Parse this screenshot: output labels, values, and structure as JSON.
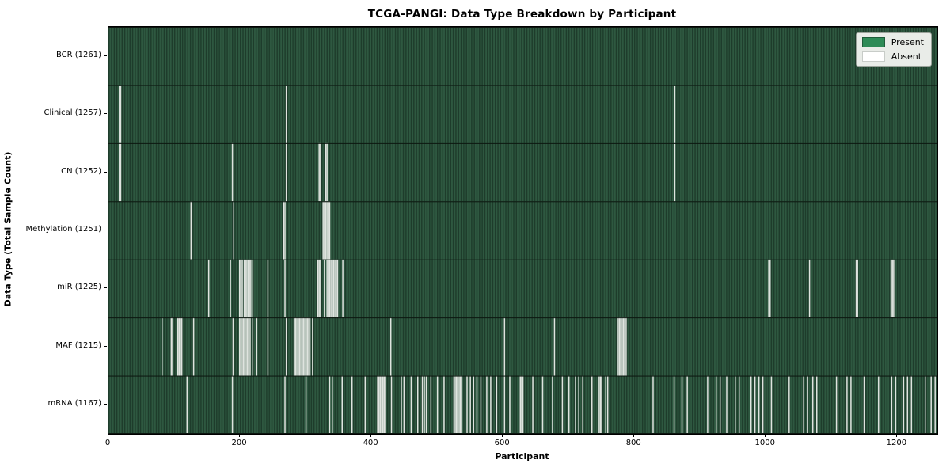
{
  "chart_data": {
    "type": "heatmap",
    "title": "TCGA-PANGI: Data Type Breakdown by Participant",
    "xlabel": "Participant",
    "ylabel": "Data Type (Total Sample Count)",
    "legend_position": "upper right",
    "grid": false,
    "x_ticks": [
      0,
      200,
      400,
      600,
      800,
      1000,
      1200
    ],
    "xlim": [
      0,
      1261
    ],
    "n_participants": 1261,
    "legend_labels": {
      "present": "Present",
      "absent": "Absent"
    },
    "colors": {
      "present": "#2e8b57",
      "absent": "#ffffff",
      "row_base": "#2e5840",
      "row_edge_texture": "#1e3c2b",
      "absent_stripe": "#dfe4df",
      "row_separator": "#0c160f",
      "frame": "#000000",
      "legend_bg": "#e9ece8"
    },
    "rows": [
      {
        "label": "BCR (1261)",
        "name": "BCR",
        "total": 1261,
        "absent_participants": []
      },
      {
        "label": "Clinical (1257)",
        "name": "Clinical",
        "total": 1257,
        "absent_participants": [
          16,
          18,
          270,
          861
        ]
      },
      {
        "label": "CN (1252)",
        "name": "CN",
        "total": 1252,
        "absent_participants": [
          16,
          18,
          188,
          270,
          320,
          322,
          330,
          332,
          861
        ]
      },
      {
        "label": "Methylation (1251)",
        "name": "Methylation",
        "total": 1251,
        "absent_participants": [
          125,
          190,
          266,
          268,
          326,
          328,
          330,
          332,
          334,
          336
        ]
      },
      {
        "label": "miR (1225)",
        "name": "miR",
        "total": 1225,
        "absent_participants": [
          152,
          185,
          199,
          201,
          203,
          206,
          208,
          210,
          212,
          214,
          216,
          219,
          242,
          268,
          318,
          320,
          322,
          328,
          332,
          334,
          336,
          338,
          340,
          342,
          344,
          346,
          348,
          356,
          1004,
          1006,
          1066,
          1137,
          1139,
          1190,
          1192,
          1194
        ]
      },
      {
        "label": "MAF (1215)",
        "name": "MAF",
        "total": 1215,
        "absent_participants": [
          81,
          95,
          97,
          105,
          107,
          109,
          111,
          129,
          189,
          199,
          201,
          203,
          205,
          207,
          209,
          211,
          213,
          215,
          219,
          225,
          242,
          270,
          282,
          284,
          286,
          288,
          290,
          292,
          294,
          296,
          298,
          300,
          302,
          304,
          306,
          310,
          429,
          602,
          678,
          775,
          777,
          779,
          781,
          783,
          785,
          787
        ]
      },
      {
        "label": "mRNA (1167)",
        "name": "mRNA",
        "total": 1167,
        "absent_participants": [
          119,
          188,
          268,
          300,
          336,
          340,
          355,
          370,
          390,
          409,
          411,
          413,
          415,
          417,
          419,
          421,
          430,
          445,
          449,
          460,
          470,
          477,
          480,
          483,
          490,
          500,
          510,
          525,
          527,
          529,
          531,
          533,
          535,
          537,
          545,
          550,
          555,
          560,
          566,
          575,
          581,
          590,
          602,
          610,
          626,
          628,
          630,
          645,
          660,
          675,
          690,
          700,
          710,
          715,
          721,
          735,
          746,
          748,
          750,
          756,
          759,
          828,
          860,
          872,
          880,
          911,
          924,
          930,
          940,
          953,
          959,
          977,
          983,
          989,
          995,
          1008,
          1035,
          1057,
          1063,
          1071,
          1077,
          1107,
          1123,
          1129,
          1149,
          1171,
          1191,
          1197,
          1209,
          1215,
          1221,
          1242,
          1251,
          1257
        ]
      }
    ]
  }
}
